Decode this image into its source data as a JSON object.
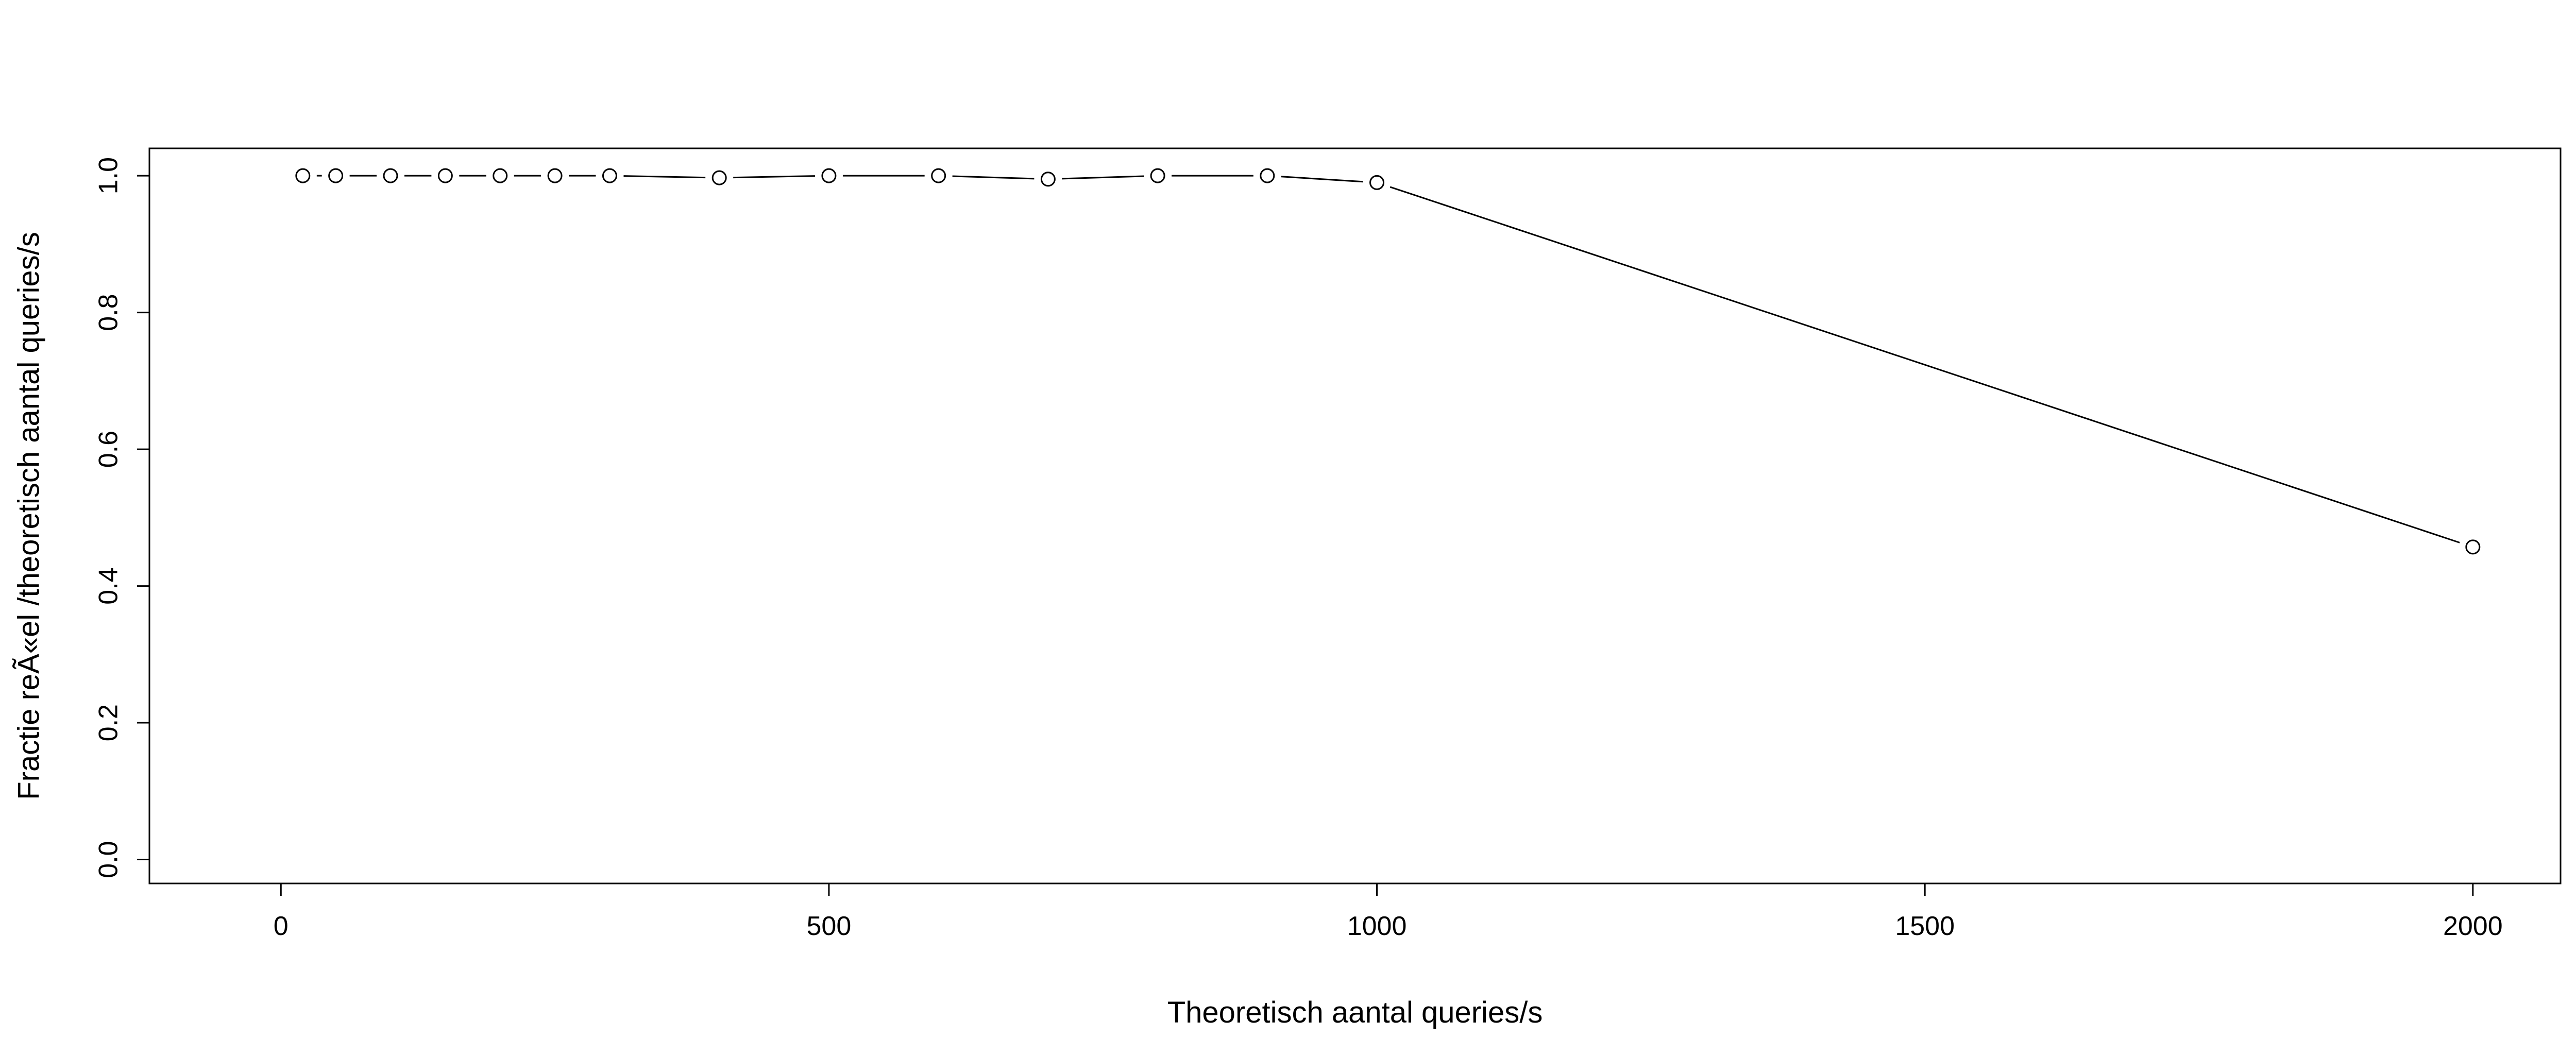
{
  "chart_data": {
    "type": "line",
    "title": "",
    "xlabel": "Theoretisch aantal queries/s",
    "ylabel": "Fractie reÃ«el /theoretisch aantal queries/s",
    "xlim": [
      -120,
      2080
    ],
    "ylim": [
      -0.035,
      1.04
    ],
    "xticks": [
      0,
      500,
      1000,
      1500,
      2000
    ],
    "xtick_labels": [
      "0",
      "500",
      "1000",
      "1500",
      "2000"
    ],
    "yticks": [
      0.0,
      0.2,
      0.4,
      0.6,
      0.8,
      1.0
    ],
    "ytick_labels": [
      "0.0",
      "0.2",
      "0.4",
      "0.6",
      "0.8",
      "1.0"
    ],
    "grid": false,
    "legend": "none",
    "series": [
      {
        "x": [
          20,
          50,
          100,
          150,
          200,
          250,
          300,
          400,
          500,
          600,
          700,
          800,
          900,
          1000,
          2000
        ],
        "y": [
          1.0,
          1.0,
          1.0,
          1.0,
          1.0,
          1.0,
          1.0,
          0.997,
          1.0,
          1.0,
          0.995,
          1.0,
          1.0,
          0.99,
          0.457
        ]
      }
    ],
    "colors": {
      "line": "#000000",
      "marker_fill": "#ffffff",
      "frame": "#000000"
    }
  }
}
